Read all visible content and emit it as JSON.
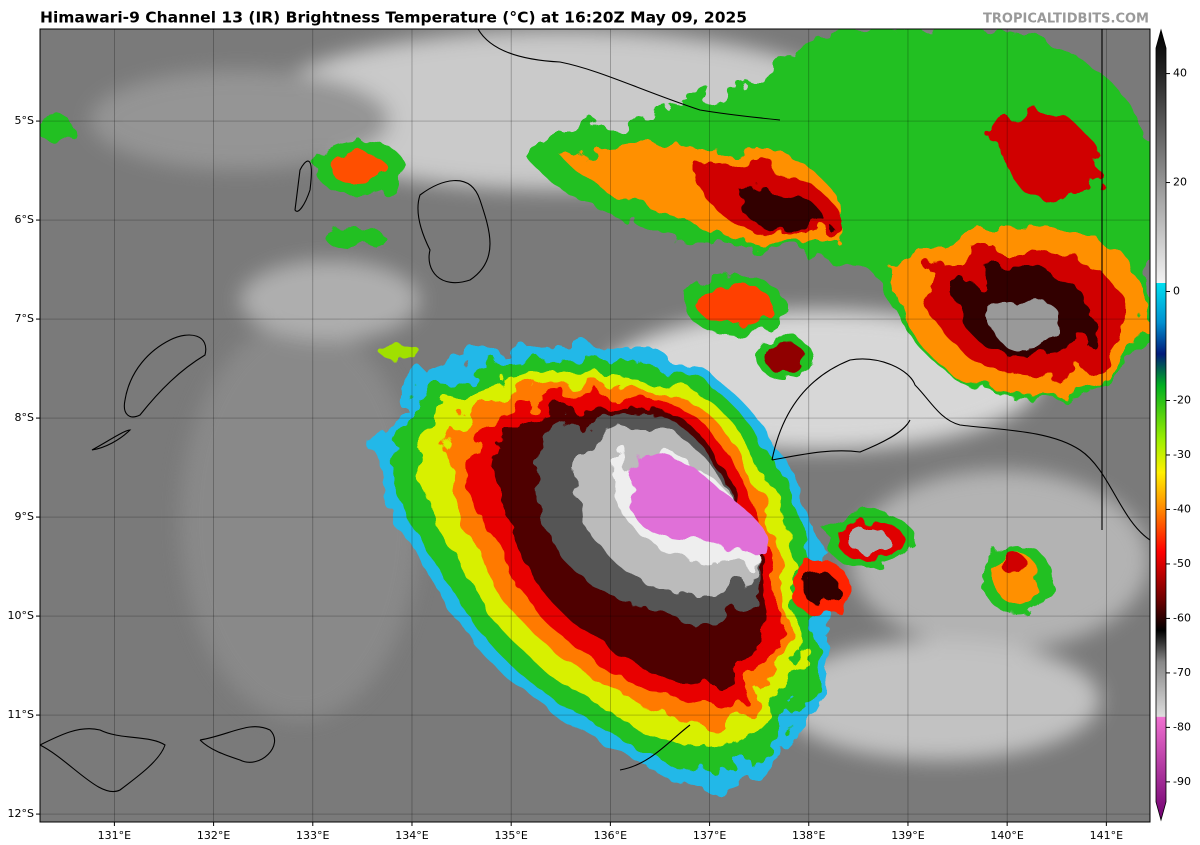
{
  "title": "Himawari-9 Channel 13 (IR) Brightness Temperature (°C) at 16:20Z May 09, 2025",
  "credit": "TROPICALTIDBITS.COM",
  "map": {
    "lat_range": [
      -12.08,
      -4.07
    ],
    "lon_range": [
      130.25,
      141.44
    ],
    "lat_ticks": [
      {
        "value": -5,
        "label": "5°S"
      },
      {
        "value": -6,
        "label": "6°S"
      },
      {
        "value": -7,
        "label": "7°S"
      },
      {
        "value": -8,
        "label": "8°S"
      },
      {
        "value": -9,
        "label": "9°S"
      },
      {
        "value": -10,
        "label": "10°S"
      },
      {
        "value": -11,
        "label": "11°S"
      },
      {
        "value": -12,
        "label": "12°S"
      }
    ],
    "lon_ticks": [
      {
        "value": 131,
        "label": "131°E"
      },
      {
        "value": 132,
        "label": "132°E"
      },
      {
        "value": 133,
        "label": "133°E"
      },
      {
        "value": 134,
        "label": "134°E"
      },
      {
        "value": 135,
        "label": "135°E"
      },
      {
        "value": 136,
        "label": "136°E"
      },
      {
        "value": 137,
        "label": "137°E"
      },
      {
        "value": 138,
        "label": "138°E"
      },
      {
        "value": 139,
        "label": "139°E"
      },
      {
        "value": 140,
        "label": "140°E"
      },
      {
        "value": 141,
        "label": "141°E"
      }
    ]
  },
  "colorbar": {
    "range": [
      -97,
      48
    ],
    "ticks": [
      40,
      20,
      0,
      -20,
      -30,
      -40,
      -50,
      -60,
      -70,
      -80,
      -90
    ]
  }
}
